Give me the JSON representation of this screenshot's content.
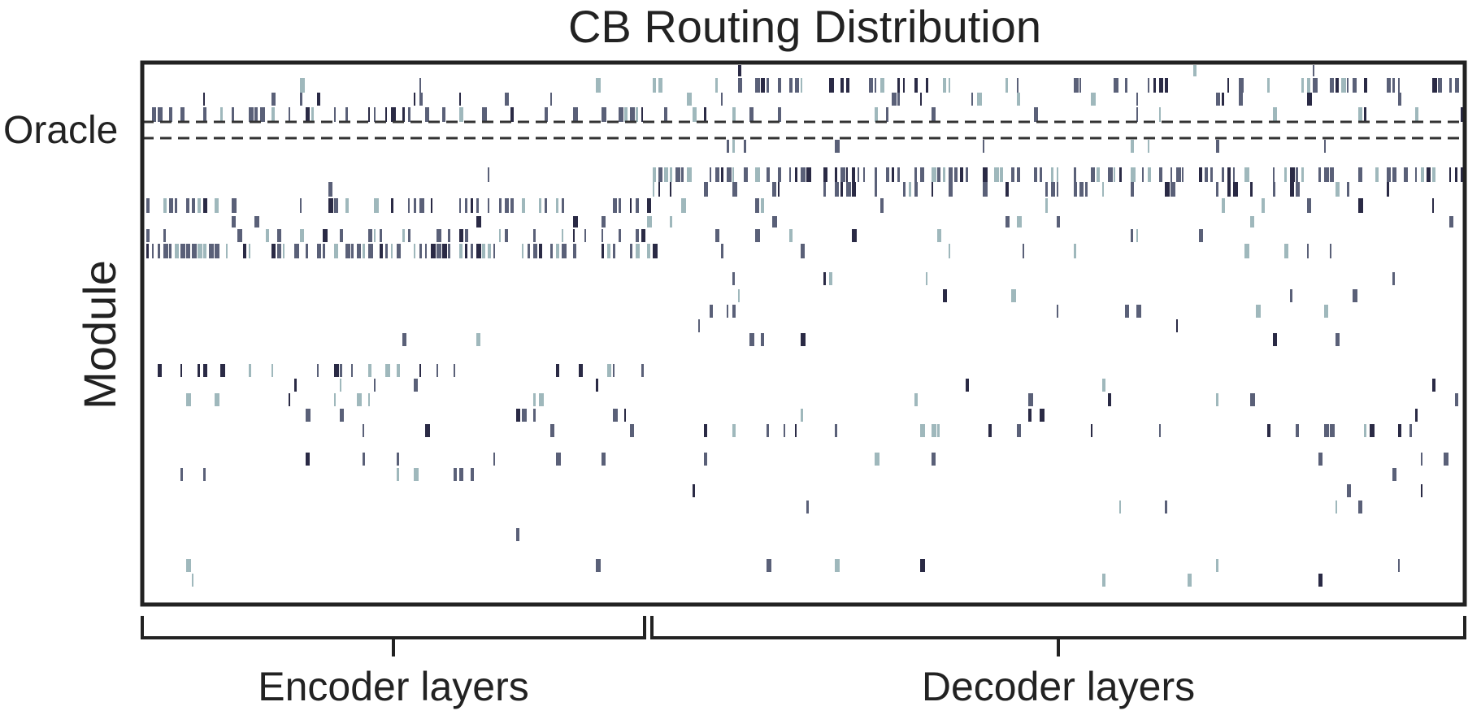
{
  "chart_data": {
    "type": "heatmap",
    "title": "CB Routing Distribution",
    "ylabel": "Module",
    "annotations": {
      "oracle_label": "Oracle"
    },
    "x_groups": [
      {
        "label": "Encoder layers"
      },
      {
        "label": "Decoder layers"
      }
    ],
    "legend": "none",
    "grid": false,
    "colors": {
      "dark": "#2a2a45",
      "mid": "#5a6078",
      "light": "#9fb8bc",
      "frame": "#222222",
      "dash": "#333333"
    }
  }
}
